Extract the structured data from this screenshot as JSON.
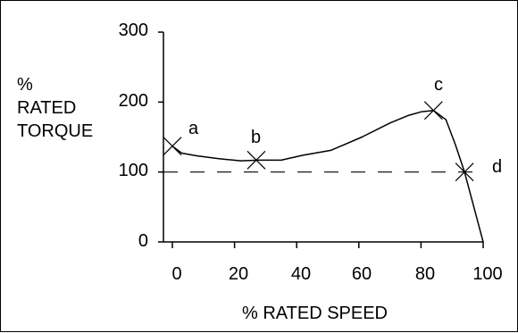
{
  "chart_data": {
    "type": "line",
    "title": "",
    "xlabel": "% RATED SPEED",
    "ylabel": [
      "%",
      "RATED",
      "TORQUE"
    ],
    "xlim": [
      0,
      100
    ],
    "ylim": [
      0,
      300
    ],
    "x_ticks": [
      "0",
      "20",
      "40",
      "60",
      "80",
      "100"
    ],
    "y_ticks": [
      "0",
      "100",
      "200",
      "300"
    ],
    "grid": false,
    "series": [
      {
        "x": [
          0,
          3,
          8,
          15,
          22,
          28,
          35,
          42,
          51,
          61,
          70,
          76,
          80,
          84,
          88,
          91,
          94,
          100
        ],
        "y": [
          137,
          127,
          123,
          119,
          116,
          117,
          117,
          124,
          131,
          150,
          170,
          181,
          186,
          188,
          175,
          140,
          100,
          0
        ]
      }
    ],
    "reference_line": {
      "y": 100,
      "style": "dashed"
    },
    "points": [
      {
        "label": "a",
        "x": 0,
        "y": 137
      },
      {
        "label": "b",
        "x": 27,
        "y": 117
      },
      {
        "label": "c",
        "x": 84,
        "y": 188
      },
      {
        "label": "d",
        "x": 94,
        "y": 100
      }
    ]
  }
}
